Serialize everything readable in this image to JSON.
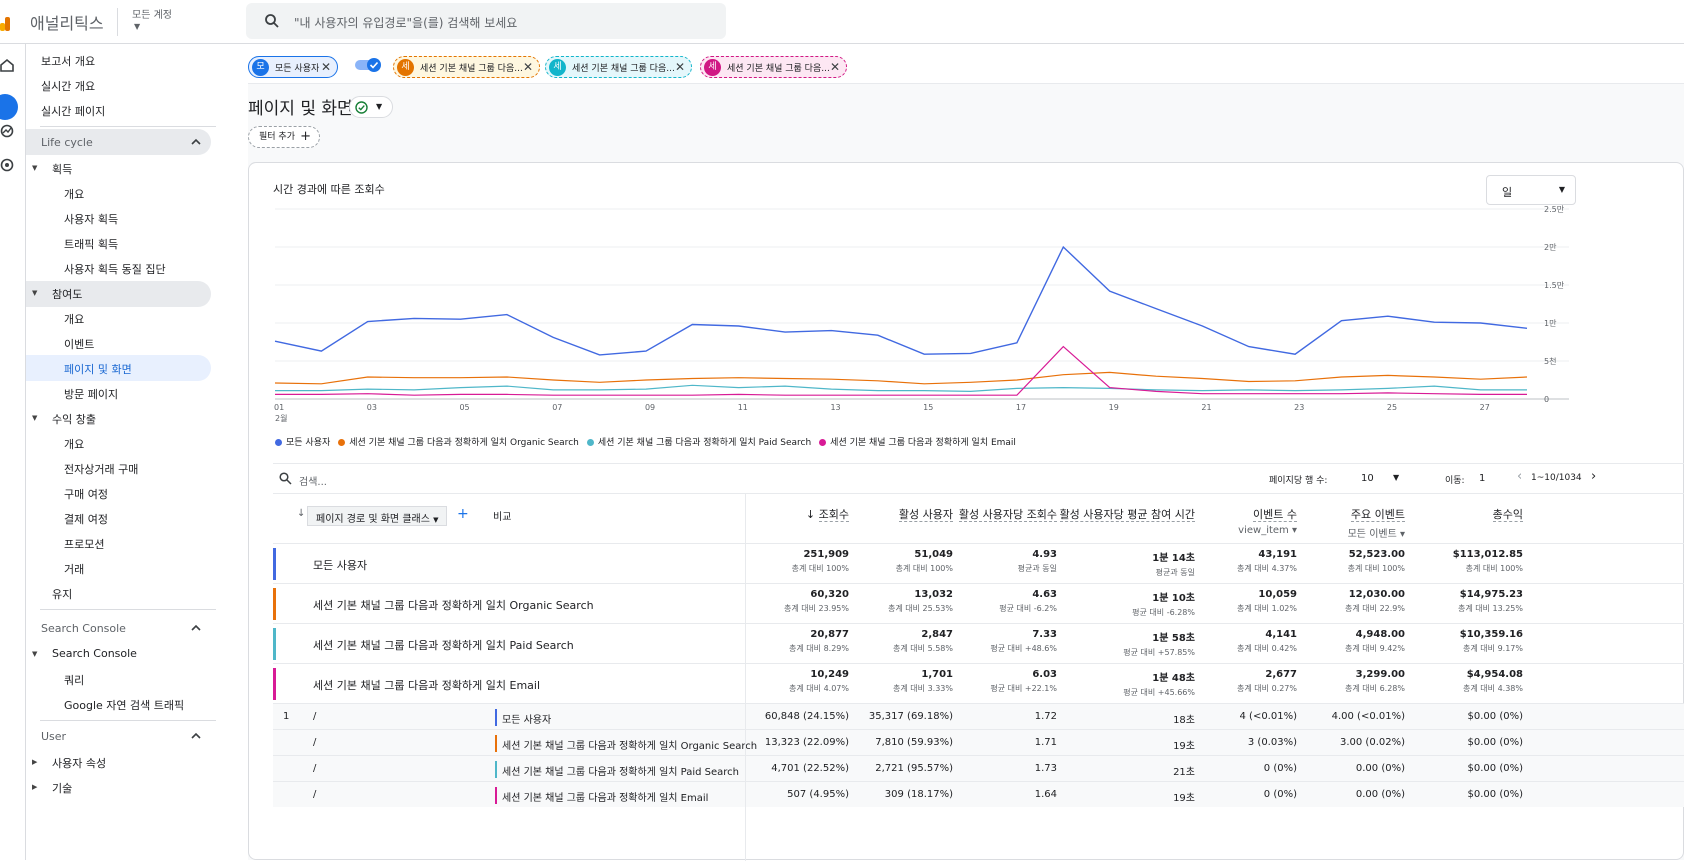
{
  "app": {
    "title": "애널리틱스",
    "account": "모든 계정",
    "search_placeholder": "\"내 사용자의 유입경로\"을(를) 검색해 보세요"
  },
  "sidebar": {
    "top": [
      "보고서 개요",
      "실시간 개요",
      "실시간 페이지"
    ],
    "lifecycle": "Life cycle",
    "acquisition": {
      "label": "획득",
      "items": [
        "개요",
        "사용자 획득",
        "트래픽 획득",
        "사용자 획득 동질 집단"
      ]
    },
    "engagement": {
      "label": "참여도",
      "items": [
        "개요",
        "이벤트",
        "페이지 및 화면",
        "방문 페이지"
      ]
    },
    "monetization": {
      "label": "수익 창출",
      "items": [
        "개요",
        "전자상거래 구매",
        "구매 여정",
        "결제 여정",
        "프로모션",
        "거래"
      ]
    },
    "retention": "유지",
    "search_console_section": "Search Console",
    "search_console": {
      "label": "Search Console",
      "items": [
        "쿼리",
        "Google 자연 검색 트래픽"
      ]
    },
    "user_section": "User",
    "user_items": [
      "사용자 속성",
      "기술"
    ]
  },
  "chips": [
    {
      "badge": "모",
      "label": "모든 사용자",
      "color": "#1a73e8"
    },
    {
      "badge": "세",
      "label": "세션 기본 채널 그룹 다음...",
      "color": "#e37400"
    },
    {
      "badge": "세",
      "label": "세션 기본 채널 그룹 다음...",
      "color": "#12b5cb"
    },
    {
      "badge": "세",
      "label": "세션 기본 채널 그룹 다음...",
      "color": "#d01884"
    }
  ],
  "page": {
    "title": "페이지 및 화면",
    "filter_add": "필터 추가"
  },
  "chart": {
    "title": "시간 경과에 따른 조회수",
    "period": "일",
    "month_label": "2월"
  },
  "chart_data": {
    "type": "line",
    "x": [
      "01",
      "02",
      "03",
      "04",
      "05",
      "06",
      "07",
      "08",
      "09",
      "10",
      "11",
      "12",
      "13",
      "14",
      "15",
      "16",
      "17",
      "18",
      "19",
      "20",
      "21",
      "22",
      "23",
      "24",
      "25",
      "26",
      "27",
      "28"
    ],
    "x_tick_labels": [
      "01",
      "03",
      "05",
      "07",
      "09",
      "11",
      "13",
      "15",
      "17",
      "19",
      "21",
      "23",
      "25",
      "27"
    ],
    "y_tick_labels": [
      "0",
      "5천",
      "1만",
      "1.5만",
      "2만",
      "2.5만"
    ],
    "ylim": [
      0,
      25000
    ],
    "grid": true,
    "legend_position": "bottom-left",
    "series": [
      {
        "name": "모든 사용자",
        "color": "#4169e1",
        "values": [
          7600,
          6300,
          10200,
          10600,
          10500,
          11100,
          8100,
          5800,
          6300,
          9800,
          9600,
          8800,
          9000,
          8400,
          5900,
          6000,
          7400,
          20000,
          14200,
          11900,
          9600,
          6900,
          5900,
          10300,
          10900,
          10100,
          10000,
          9300
        ]
      },
      {
        "name": "세션 기본 채널 그룹 다음과 정확하게 일치 Organic Search",
        "color": "#e8710a",
        "values": [
          2100,
          2000,
          2900,
          2800,
          2800,
          2900,
          2500,
          2200,
          2500,
          2700,
          2800,
          2700,
          2600,
          2400,
          2000,
          2200,
          2500,
          3200,
          3500,
          3000,
          2700,
          2300,
          2400,
          2900,
          3100,
          2900,
          2600,
          2900
        ]
      },
      {
        "name": "세션 기본 채널 그룹 다음과 정확하게 일치 Paid Search",
        "color": "#4fb7c9",
        "values": [
          1100,
          1100,
          1300,
          1200,
          1500,
          1700,
          1200,
          1200,
          1300,
          1800,
          1500,
          1700,
          1300,
          1100,
          1100,
          1000,
          1400,
          1500,
          1400,
          1200,
          1100,
          1200,
          1100,
          1200,
          1400,
          1700,
          1200,
          1200
        ]
      },
      {
        "name": "세션 기본 채널 그룹 다음과 정확하게 일치 Email",
        "color": "#d81b96",
        "values": [
          600,
          600,
          700,
          500,
          600,
          600,
          500,
          500,
          500,
          500,
          600,
          500,
          500,
          500,
          500,
          500,
          500,
          6900,
          1500,
          1000,
          700,
          700,
          700,
          700,
          800,
          700,
          600,
          600
        ]
      }
    ]
  },
  "table": {
    "search_placeholder": "검색...",
    "rows_per_page_label": "페이지당 행 수:",
    "rows_per_page": "10",
    "goto_label": "이동:",
    "goto_value": "1",
    "range": "1~10/1034",
    "dimension": "페이지 경로 및 화면 클래스",
    "compare": "비교",
    "columns": [
      {
        "label": "조회수",
        "sub": ""
      },
      {
        "label": "활성 사용자",
        "sub": ""
      },
      {
        "label": "활성 사용자당 조회수",
        "sub": ""
      },
      {
        "label": "활성 사용자당 평균 참여 시간",
        "sub": ""
      },
      {
        "label": "이벤트 수",
        "sub": "view_item"
      },
      {
        "label": "주요 이벤트",
        "sub": "모든 이벤트"
      },
      {
        "label": "총수익",
        "sub": ""
      }
    ],
    "totals": [
      {
        "name": "모든 사용자",
        "color": "#4169e1",
        "cells": [
          [
            "251,909",
            "총계 대비 100%"
          ],
          [
            "51,049",
            "총계 대비 100%"
          ],
          [
            "4.93",
            "평균과 동일"
          ],
          [
            "1분 14초",
            "평균과 동일"
          ],
          [
            "43,191",
            "총계 대비 4.37%"
          ],
          [
            "52,523.00",
            "총계 대비 100%"
          ],
          [
            "$113,012.85",
            "총계 대비 100%"
          ]
        ]
      },
      {
        "name": "세션 기본 채널 그룹 다음과 정확하게 일치 Organic Search",
        "color": "#e8710a",
        "cells": [
          [
            "60,320",
            "총계 대비 23.95%"
          ],
          [
            "13,032",
            "총계 대비 25.53%"
          ],
          [
            "4.63",
            "평균 대비 -6.2%"
          ],
          [
            "1분 10초",
            "평균 대비 -6.28%"
          ],
          [
            "10,059",
            "총계 대비 1.02%"
          ],
          [
            "12,030.00",
            "총계 대비 22.9%"
          ],
          [
            "$14,975.23",
            "총계 대비 13.25%"
          ]
        ]
      },
      {
        "name": "세션 기본 채널 그룹 다음과 정확하게 일치 Paid Search",
        "color": "#4fb7c9",
        "cells": [
          [
            "20,877",
            "총계 대비 8.29%"
          ],
          [
            "2,847",
            "총계 대비 5.58%"
          ],
          [
            "7.33",
            "평균 대비 +48.6%"
          ],
          [
            "1분 58초",
            "평균 대비 +57.85%"
          ],
          [
            "4,141",
            "총계 대비 0.42%"
          ],
          [
            "4,948.00",
            "총계 대비 9.42%"
          ],
          [
            "$10,359.16",
            "총계 대비 9.17%"
          ]
        ]
      },
      {
        "name": "세션 기본 채널 그룹 다음과 정확하게 일치 Email",
        "color": "#d81b96",
        "cells": [
          [
            "10,249",
            "총계 대비 4.07%"
          ],
          [
            "1,701",
            "총계 대비 3.33%"
          ],
          [
            "6.03",
            "평균 대비 +22.1%"
          ],
          [
            "1분 48초",
            "평균 대비 +45.66%"
          ],
          [
            "2,677",
            "총계 대비 0.27%"
          ],
          [
            "3,299.00",
            "총계 대비 6.28%"
          ],
          [
            "$4,954.08",
            "총계 대비 4.38%"
          ]
        ]
      }
    ],
    "rows": [
      {
        "num": "1",
        "path": "/",
        "seg": "모든 사용자",
        "color": "#4169e1",
        "cells": [
          "60,848 (24.15%)",
          "35,317 (69.18%)",
          "1.72",
          "18초",
          "4 (<0.01%)",
          "4.00 (<0.01%)",
          "$0.00 (0%)"
        ]
      },
      {
        "num": "",
        "path": "/",
        "seg": "세션 기본 채널 그룹 다음과 정확하게 일치 Organic Search",
        "color": "#e8710a",
        "cells": [
          "13,323 (22.09%)",
          "7,810 (59.93%)",
          "1.71",
          "19초",
          "3 (0.03%)",
          "3.00 (0.02%)",
          "$0.00 (0%)"
        ]
      },
      {
        "num": "",
        "path": "/",
        "seg": "세션 기본 채널 그룹 다음과 정확하게 일치 Paid Search",
        "color": "#4fb7c9",
        "cells": [
          "4,701 (22.52%)",
          "2,721 (95.57%)",
          "1.73",
          "21초",
          "0 (0%)",
          "0.00 (0%)",
          "$0.00 (0%)"
        ]
      },
      {
        "num": "",
        "path": "/",
        "seg": "세션 기본 채널 그룹 다음과 정확하게 일치 Email",
        "color": "#d81b96",
        "cells": [
          "507 (4.95%)",
          "309 (18.17%)",
          "1.64",
          "19초",
          "0 (0%)",
          "0.00 (0%)",
          "$0.00 (0%)"
        ]
      }
    ]
  }
}
